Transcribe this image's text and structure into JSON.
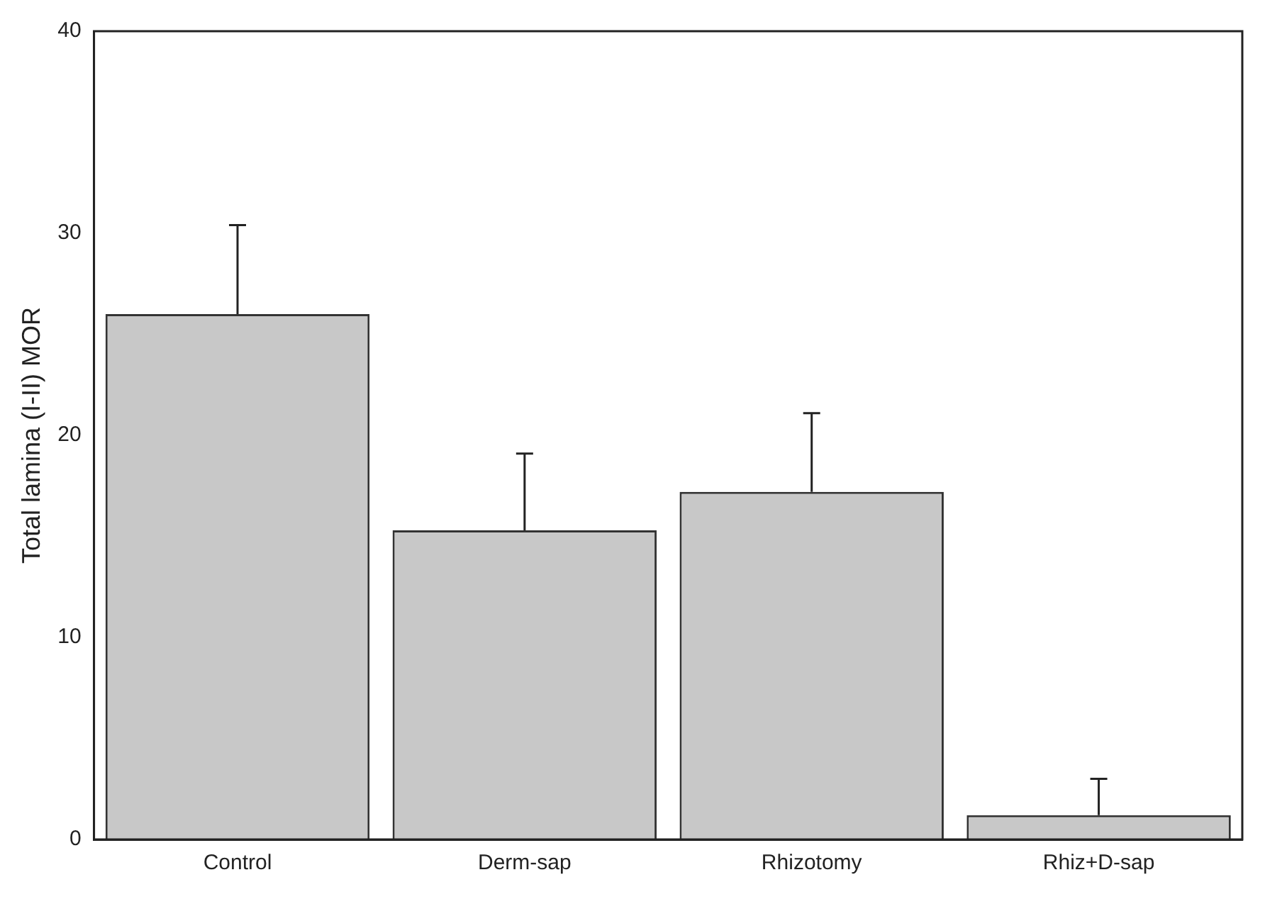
{
  "chart_data": {
    "type": "bar",
    "ylabel": "Total lamina (I-II) MOR",
    "categories": [
      "Control",
      "Derm-sap",
      "Rhizotomy",
      "Rhiz+D-sap"
    ],
    "values": [
      26.0,
      15.3,
      17.2,
      1.2
    ],
    "color": "#c8c8c8",
    "errors": [
      [
        26.0,
        30.4
      ],
      [
        15.3,
        19.1
      ],
      [
        17.2,
        21.1
      ],
      [
        1.2,
        3.0
      ]
    ],
    "ylim": [
      0,
      40
    ],
    "yticks": [
      0,
      10,
      20,
      30,
      40
    ],
    "grid": false,
    "legend": false
  }
}
